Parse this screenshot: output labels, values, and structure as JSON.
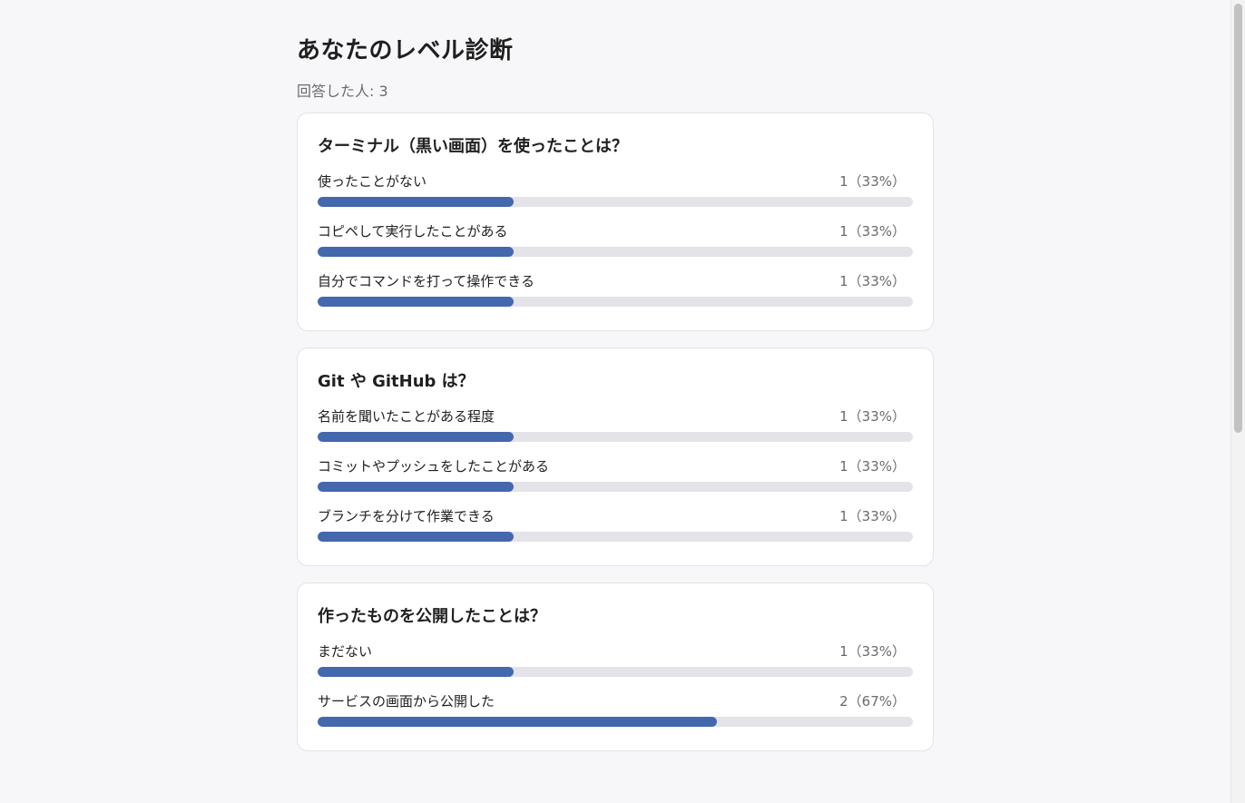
{
  "page": {
    "title": "あなたのレベル診断",
    "respondents": "回答した人: 3"
  },
  "questions": [
    {
      "title": "ターミナル（黒い画面）を使ったことは？",
      "options": [
        {
          "label": "使ったことがない",
          "count": "1（33%）",
          "fraction": 0.33
        },
        {
          "label": "コピペして実行したことがある",
          "count": "1（33%）",
          "fraction": 0.33
        },
        {
          "label": "自分でコマンドを打って操作できる",
          "count": "1（33%）",
          "fraction": 0.33
        }
      ]
    },
    {
      "title": "Git や GitHub は？",
      "options": [
        {
          "label": "名前を聞いたことがある程度",
          "count": "1（33%）",
          "fraction": 0.33
        },
        {
          "label": "コミットやプッシュをしたことがある",
          "count": "1（33%）",
          "fraction": 0.33
        },
        {
          "label": "ブランチを分けて作業できる",
          "count": "1（33%）",
          "fraction": 0.33
        }
      ]
    },
    {
      "title": "作ったものを公開したことは？",
      "options": [
        {
          "label": "まだない",
          "count": "1（33%）",
          "fraction": 0.33
        },
        {
          "label": "サービスの画面から公開した",
          "count": "2（67%）",
          "fraction": 0.67
        }
      ]
    }
  ],
  "colors": {
    "bar_fill": "#4468ad",
    "bar_track": "#e3e3e8"
  }
}
